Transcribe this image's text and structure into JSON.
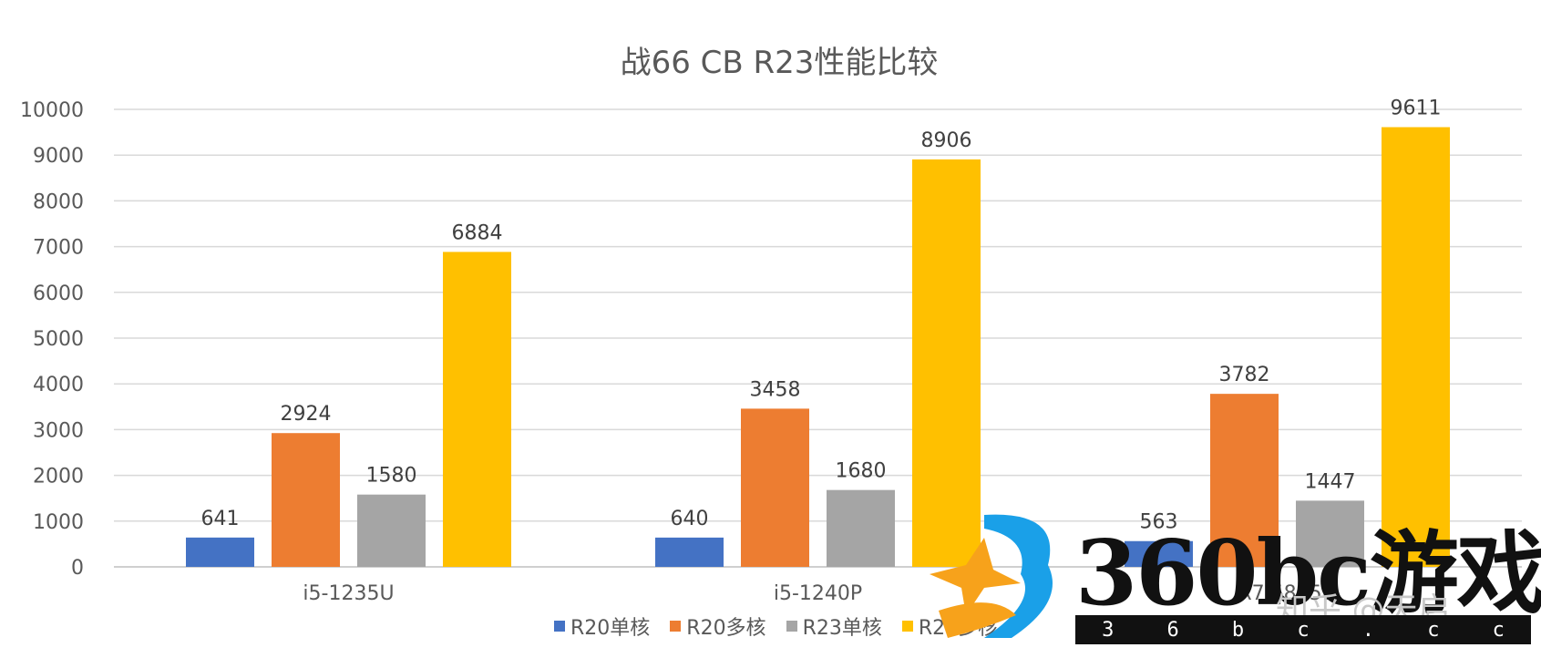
{
  "chart_data": {
    "type": "bar",
    "title": "战66 CB R23性能比较",
    "categories": [
      "i5-1235U",
      "i5-1240P",
      "R7 5825U"
    ],
    "series": [
      {
        "name": "R20单核",
        "color": "#4472C4",
        "values": [
          641,
          640,
          563
        ]
      },
      {
        "name": "R20多核",
        "color": "#ED7D31",
        "values": [
          2924,
          3458,
          3782
        ]
      },
      {
        "name": "R23单核",
        "color": "#A5A5A5",
        "values": [
          1580,
          1680,
          1447
        ]
      },
      {
        "name": "R23多核",
        "color": "#FFC000",
        "values": [
          6884,
          8906,
          9611
        ]
      }
    ],
    "ylim": [
      0,
      10000
    ],
    "yticks": [
      0,
      1000,
      2000,
      3000,
      4000,
      5000,
      6000,
      7000,
      8000,
      9000,
      10000
    ],
    "grid": true,
    "legend_position": "bottom",
    "xlabel": "",
    "ylabel": ""
  },
  "watermark": {
    "logo_text": "360bc游戏",
    "url_chars": [
      "3",
      "6",
      "b",
      "c",
      ".",
      "c",
      "c"
    ],
    "zhihu_text": "知乎 @天启"
  }
}
